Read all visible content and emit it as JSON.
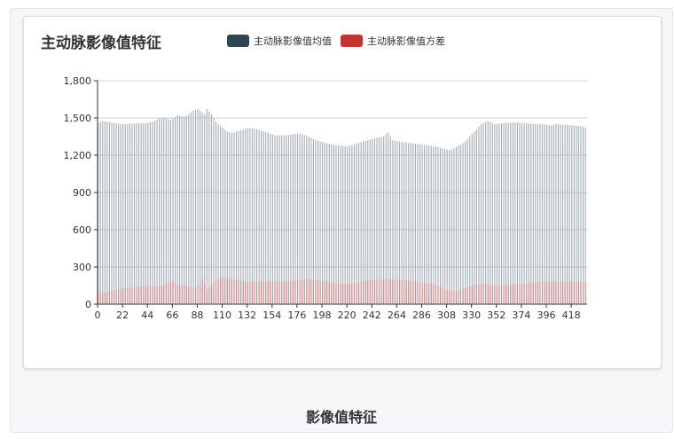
{
  "footer": {
    "title": "影像值特征"
  },
  "chart_data": {
    "type": "bar",
    "title": "主动脉影像值特征",
    "xlabel": "",
    "ylabel": "",
    "ylim": [
      0,
      1800
    ],
    "yticks": [
      0,
      300,
      600,
      900,
      1200,
      1500,
      1800
    ],
    "ytick_labels": [
      "0",
      "300",
      "600",
      "900",
      "1,200",
      "1,500",
      "1,800"
    ],
    "xlim": [
      0,
      432
    ],
    "xticks": [
      0,
      22,
      44,
      66,
      88,
      110,
      132,
      154,
      176,
      198,
      220,
      242,
      264,
      286,
      308,
      330,
      352,
      374,
      396,
      418
    ],
    "grid": true,
    "legend_position": "top",
    "bars_shown": "every other index (even x only)",
    "series": [
      {
        "name": "主动脉影像值均值",
        "color": "#2f4554",
        "keypoints": [
          [
            0,
            1460
          ],
          [
            4,
            1475
          ],
          [
            10,
            1465
          ],
          [
            16,
            1455
          ],
          [
            20,
            1450
          ],
          [
            30,
            1455
          ],
          [
            44,
            1460
          ],
          [
            50,
            1475
          ],
          [
            54,
            1500
          ],
          [
            60,
            1500
          ],
          [
            64,
            1480
          ],
          [
            70,
            1520
          ],
          [
            76,
            1510
          ],
          [
            80,
            1530
          ],
          [
            84,
            1560
          ],
          [
            88,
            1570
          ],
          [
            92,
            1540
          ],
          [
            94,
            1530
          ],
          [
            96,
            1570
          ],
          [
            100,
            1530
          ],
          [
            104,
            1470
          ],
          [
            110,
            1420
          ],
          [
            114,
            1390
          ],
          [
            118,
            1380
          ],
          [
            126,
            1400
          ],
          [
            132,
            1420
          ],
          [
            140,
            1410
          ],
          [
            150,
            1380
          ],
          [
            156,
            1360
          ],
          [
            166,
            1360
          ],
          [
            176,
            1375
          ],
          [
            182,
            1365
          ],
          [
            190,
            1330
          ],
          [
            198,
            1305
          ],
          [
            210,
            1280
          ],
          [
            220,
            1270
          ],
          [
            230,
            1300
          ],
          [
            240,
            1325
          ],
          [
            246,
            1340
          ],
          [
            252,
            1350
          ],
          [
            256,
            1385
          ],
          [
            260,
            1320
          ],
          [
            270,
            1305
          ],
          [
            282,
            1290
          ],
          [
            294,
            1275
          ],
          [
            300,
            1265
          ],
          [
            310,
            1240
          ],
          [
            316,
            1265
          ],
          [
            324,
            1310
          ],
          [
            332,
            1390
          ],
          [
            338,
            1450
          ],
          [
            344,
            1475
          ],
          [
            350,
            1450
          ],
          [
            360,
            1460
          ],
          [
            370,
            1465
          ],
          [
            380,
            1455
          ],
          [
            390,
            1450
          ],
          [
            400,
            1440
          ],
          [
            404,
            1450
          ],
          [
            418,
            1440
          ],
          [
            424,
            1435
          ],
          [
            432,
            1420
          ]
        ]
      },
      {
        "name": "主动脉影像值方差",
        "color": "#c23531",
        "keypoints": [
          [
            0,
            105
          ],
          [
            6,
            95
          ],
          [
            12,
            110
          ],
          [
            20,
            125
          ],
          [
            30,
            135
          ],
          [
            40,
            145
          ],
          [
            48,
            150
          ],
          [
            54,
            140
          ],
          [
            60,
            165
          ],
          [
            66,
            190
          ],
          [
            70,
            160
          ],
          [
            76,
            150
          ],
          [
            82,
            140
          ],
          [
            86,
            130
          ],
          [
            90,
            160
          ],
          [
            92,
            205
          ],
          [
            96,
            120
          ],
          [
            100,
            150
          ],
          [
            106,
            210
          ],
          [
            112,
            215
          ],
          [
            120,
            200
          ],
          [
            130,
            180
          ],
          [
            140,
            185
          ],
          [
            150,
            185
          ],
          [
            160,
            182
          ],
          [
            170,
            185
          ],
          [
            176,
            195
          ],
          [
            186,
            200
          ],
          [
            196,
            195
          ],
          [
            204,
            180
          ],
          [
            212,
            165
          ],
          [
            222,
            165
          ],
          [
            230,
            175
          ],
          [
            240,
            195
          ],
          [
            250,
            200
          ],
          [
            260,
            200
          ],
          [
            270,
            195
          ],
          [
            280,
            180
          ],
          [
            290,
            170
          ],
          [
            298,
            160
          ],
          [
            304,
            130
          ],
          [
            310,
            110
          ],
          [
            318,
            110
          ],
          [
            324,
            130
          ],
          [
            332,
            155
          ],
          [
            340,
            165
          ],
          [
            350,
            150
          ],
          [
            360,
            155
          ],
          [
            372,
            160
          ],
          [
            380,
            175
          ],
          [
            390,
            180
          ],
          [
            400,
            178
          ],
          [
            410,
            178
          ],
          [
            420,
            178
          ],
          [
            432,
            180
          ]
        ]
      }
    ]
  }
}
